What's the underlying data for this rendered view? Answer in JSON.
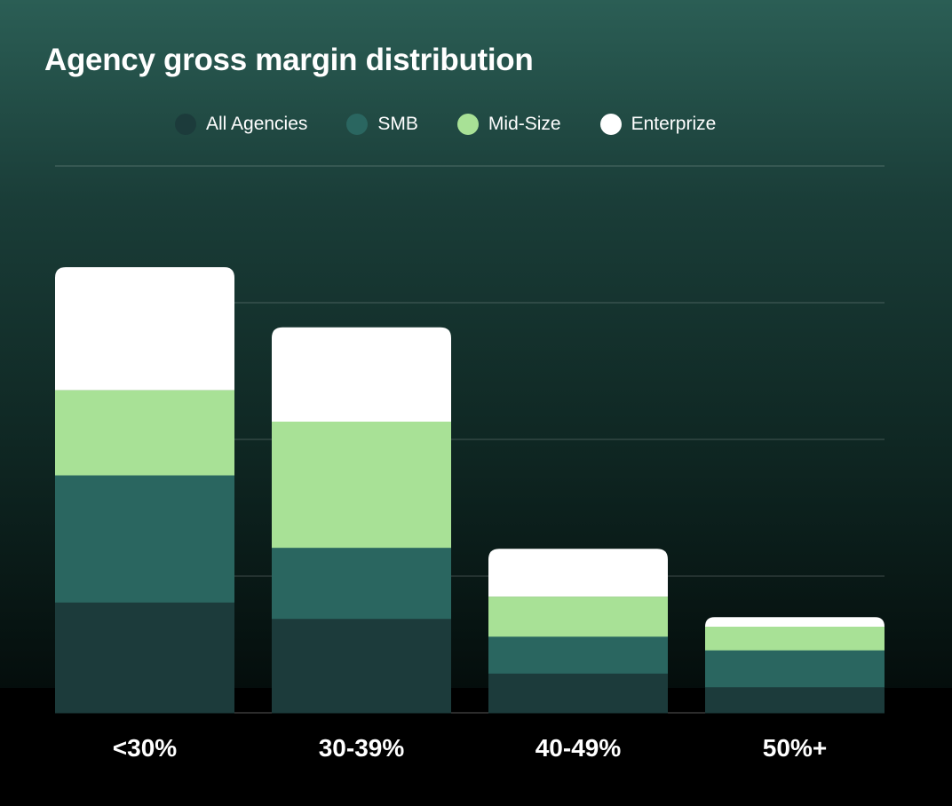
{
  "chart_data": {
    "type": "bar",
    "stacked": true,
    "title": "Agency gross margin distribution",
    "categories": [
      "<30%",
      "30-39%",
      "40-49%",
      "50%+"
    ],
    "series": [
      {
        "name": "All Agencies",
        "color": "#1c3b3b",
        "values": [
          8.1,
          6.9,
          2.9,
          1.9
        ]
      },
      {
        "name": "SMB",
        "color": "#2a6660",
        "values": [
          9.3,
          5.2,
          2.7,
          2.7
        ]
      },
      {
        "name": "Mid-Size",
        "color": "#a8e196",
        "values": [
          6.2,
          9.2,
          2.9,
          1.7
        ]
      },
      {
        "name": "Enterprize",
        "color": "#ffffff",
        "values": [
          9.0,
          6.9,
          3.5,
          0.7
        ]
      }
    ],
    "xlabel": "",
    "ylabel": "",
    "ylim": [
      0,
      40
    ],
    "gridlines": [
      10,
      20,
      30,
      40
    ],
    "grid": true,
    "legend": "top-center"
  }
}
